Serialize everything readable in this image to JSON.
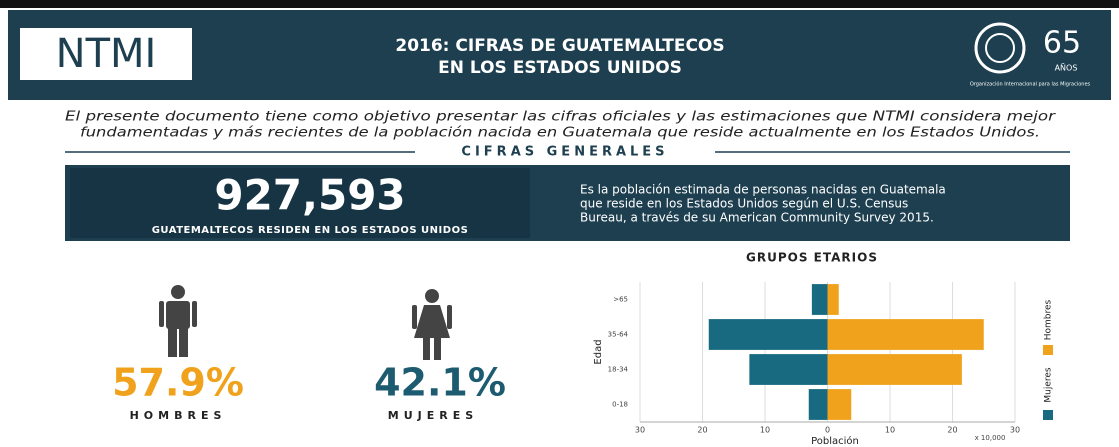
{
  "header": {
    "logo": "NTMI",
    "title": [
      "2016: CIFRAS DE GUATEMALTECOS",
      "EN LOS ESTADOS UNIDOS"
    ],
    "badge": "65",
    "badge_sub": "AÑOS",
    "org": "Organización Internacional para las Migraciones"
  },
  "intro": [
    "El presente documento tiene como objetivo presentar las cifras oficiales y las estimaciones que NTMI considera mejor",
    "fundamentadas y más recientes de la población nacida en Guatemala que reside actualmente en los Estados Unidos."
  ],
  "section": "CIFRAS GENERALES",
  "headline": {
    "number": "927,593",
    "caption": "GUATEMALTECOS RESIDEN EN LOS ESTADOS UNIDOS",
    "text": [
      "Es la población estimada de personas nacidas en Guatemala",
      "que reside en los Estados Unidos según el U.S. Census",
      "Bureau, a través de su American Community Survey 2015."
    ]
  },
  "stats": [
    {
      "value": "57.9%",
      "label": "HOMBRES"
    },
    {
      "value": "42.1%",
      "label": "MUJERES"
    }
  ],
  "chart_data": {
    "type": "bar",
    "orientation": "horizontal",
    "title": "GRUPOS ETARIOS",
    "categories": [
      ">65",
      "35-64",
      "18-34",
      "0-18"
    ],
    "series": [
      {
        "name": "Mujeres",
        "color": "#176a7f",
        "values": [
          -2.5,
          -19,
          -12.5,
          -3
        ]
      },
      {
        "name": "Hombres",
        "color": "#f0a21c",
        "values": [
          1.8,
          25,
          21.5,
          3.8
        ]
      }
    ],
    "xlabel": "Población",
    "ylabel": "Edad",
    "x_unit": "x 10,000",
    "xlim": [
      -30,
      30
    ],
    "xticks": [
      {
        "value": -30,
        "label": "30"
      },
      {
        "value": -20,
        "label": "20"
      },
      {
        "value": -10,
        "label": "10"
      },
      0,
      10,
      20,
      30
    ],
    "grid": true,
    "legend": "right"
  }
}
